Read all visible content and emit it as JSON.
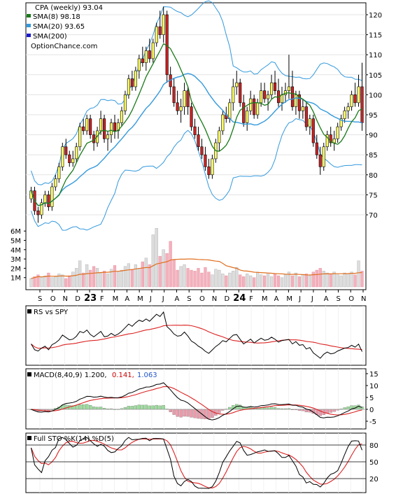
{
  "chart_data": {
    "type": "stock-chart",
    "title": "CPA (weekly) 93.04",
    "legend": [
      {
        "label": "SMA(8) 98.18",
        "color": "#1a7a1a"
      },
      {
        "label": "SMA(20) 93.65",
        "color": "#3399dd"
      },
      {
        "label": "SMA(200)",
        "color": "#1a1acc"
      }
    ],
    "source": "OptionChance.com",
    "price_ticks": [
      "120",
      "115",
      "110",
      "105",
      "100",
      "95",
      "90",
      "85",
      "80",
      "75",
      "70"
    ],
    "volume_ticks": [
      "6M",
      "5M",
      "4M",
      "3M",
      "2M",
      "1M"
    ],
    "month_ticks": [
      "S",
      "O",
      "N",
      "D",
      "23",
      "F",
      "M",
      "A",
      "M",
      "J",
      "J",
      "A",
      "S",
      "O",
      "N",
      "D",
      "24",
      "F",
      "M",
      "A",
      "M",
      "J",
      "J",
      "A",
      "S",
      "O",
      "N"
    ],
    "bollinger_upper_color": "#e8e000",
    "colors": {
      "up": "#ffff66",
      "down": "#cc2222",
      "volume_up": "#dddddd",
      "volume_down": "#f4b0bc",
      "macd_pos": "#99dd99",
      "macd_neg": "#ee99aa"
    },
    "price_series": [
      [
        74,
        77,
        73,
        76
      ],
      [
        76,
        77,
        70,
        71
      ],
      [
        71,
        72,
        68,
        70
      ],
      [
        70,
        74,
        69,
        73
      ],
      [
        73,
        76,
        72,
        75
      ],
      [
        75,
        76,
        71,
        72
      ],
      [
        72,
        78,
        71,
        77
      ],
      [
        77,
        80,
        76,
        79
      ],
      [
        79,
        83,
        78,
        82
      ],
      [
        82,
        88,
        81,
        87
      ],
      [
        87,
        89,
        84,
        85
      ],
      [
        85,
        86,
        82,
        83
      ],
      [
        83,
        86,
        82,
        84
      ],
      [
        84,
        88,
        83,
        87
      ],
      [
        87,
        93,
        86,
        92
      ],
      [
        92,
        94,
        90,
        91
      ],
      [
        91,
        95,
        90,
        94
      ],
      [
        94,
        95,
        89,
        90
      ],
      [
        90,
        91,
        86,
        88
      ],
      [
        88,
        92,
        87,
        91
      ],
      [
        91,
        96,
        90,
        94
      ],
      [
        94,
        95,
        88,
        89
      ],
      [
        89,
        91,
        86,
        90
      ],
      [
        90,
        94,
        88,
        93
      ],
      [
        93,
        95,
        89,
        91
      ],
      [
        91,
        94,
        89,
        93
      ],
      [
        93,
        97,
        92,
        96
      ],
      [
        96,
        101,
        95,
        100
      ],
      [
        100,
        105,
        99,
        104
      ],
      [
        104,
        106,
        101,
        102
      ],
      [
        102,
        107,
        101,
        106
      ],
      [
        106,
        110,
        104,
        109
      ],
      [
        109,
        112,
        107,
        108
      ],
      [
        108,
        112,
        106,
        111
      ],
      [
        111,
        114,
        108,
        109
      ],
      [
        109,
        114,
        108,
        113
      ],
      [
        113,
        118,
        112,
        117
      ],
      [
        117,
        121,
        114,
        115
      ],
      [
        115,
        122,
        113,
        120
      ],
      [
        120,
        121,
        103,
        105
      ],
      [
        105,
        107,
        100,
        102
      ],
      [
        102,
        104,
        97,
        98
      ],
      [
        98,
        101,
        95,
        96
      ],
      [
        96,
        99,
        93,
        97
      ],
      [
        97,
        103,
        95,
        101
      ],
      [
        101,
        102,
        95,
        97
      ],
      [
        97,
        98,
        91,
        92
      ],
      [
        92,
        94,
        89,
        90
      ],
      [
        90,
        92,
        86,
        87
      ],
      [
        87,
        89,
        84,
        85
      ],
      [
        85,
        87,
        81,
        82
      ],
      [
        82,
        84,
        79,
        80
      ],
      [
        80,
        85,
        79,
        84
      ],
      [
        84,
        89,
        83,
        88
      ],
      [
        88,
        92,
        86,
        91
      ],
      [
        91,
        96,
        90,
        95
      ],
      [
        95,
        97,
        93,
        94
      ],
      [
        94,
        99,
        93,
        98
      ],
      [
        98,
        104,
        96,
        102
      ],
      [
        102,
        106,
        100,
        103
      ],
      [
        103,
        104,
        97,
        98
      ],
      [
        98,
        100,
        92,
        93
      ],
      [
        93,
        97,
        91,
        96
      ],
      [
        96,
        101,
        95,
        99
      ],
      [
        99,
        100,
        94,
        95
      ],
      [
        95,
        99,
        94,
        98
      ],
      [
        98,
        103,
        97,
        101
      ],
      [
        101,
        103,
        98,
        99
      ],
      [
        99,
        101,
        96,
        100
      ],
      [
        100,
        105,
        99,
        103
      ],
      [
        103,
        106,
        100,
        101
      ],
      [
        101,
        104,
        97,
        98
      ],
      [
        98,
        102,
        96,
        100
      ],
      [
        100,
        103,
        98,
        101
      ],
      [
        101,
        110,
        99,
        102
      ],
      [
        102,
        106,
        96,
        97
      ],
      [
        97,
        101,
        95,
        100
      ],
      [
        100,
        101,
        94,
        96
      ],
      [
        96,
        99,
        94,
        97
      ],
      [
        97,
        98,
        91,
        92
      ],
      [
        92,
        95,
        90,
        94
      ],
      [
        94,
        95,
        87,
        88
      ],
      [
        88,
        90,
        84,
        85
      ],
      [
        85,
        87,
        80,
        82
      ],
      [
        82,
        88,
        81,
        87
      ],
      [
        87,
        91,
        86,
        90
      ],
      [
        90,
        92,
        87,
        88
      ],
      [
        88,
        91,
        86,
        89
      ],
      [
        89,
        93,
        88,
        92
      ],
      [
        92,
        95,
        91,
        94
      ],
      [
        94,
        97,
        93,
        96
      ],
      [
        96,
        98,
        94,
        97
      ],
      [
        97,
        101,
        96,
        100
      ],
      [
        100,
        103,
        97,
        98
      ],
      [
        98,
        105,
        97,
        102
      ],
      [
        102,
        108,
        91,
        93
      ]
    ],
    "volume_series": [
      0.9,
      1.1,
      1.3,
      1.0,
      1.2,
      1.5,
      1.0,
      1.1,
      1.4,
      1.3,
      0.9,
      1.2,
      1.6,
      2.0,
      2.8,
      1.5,
      2.4,
      1.8,
      2.2,
      2.0,
      1.5,
      1.7,
      1.4,
      1.9,
      2.3,
      1.6,
      1.8,
      2.2,
      2.5,
      1.9,
      2.4,
      2.0,
      2.7,
      3.1,
      2.4,
      5.6,
      6.3,
      3.3,
      4.0,
      3.6,
      4.9,
      2.9,
      1.8,
      2.2,
      2.4,
      2.0,
      1.8,
      1.7,
      2.0,
      1.5,
      2.1,
      1.6,
      1.3,
      1.9,
      1.8,
      1.4,
      1.2,
      1.5,
      1.7,
      2.1,
      1.3,
      1.1,
      1.4,
      1.2,
      1.0,
      1.6,
      1.3,
      1.2,
      1.5,
      1.1,
      1.4,
      1.2,
      1.0,
      1.3,
      1.6,
      1.2,
      1.5,
      1.1,
      1.3,
      1.4,
      1.2,
      1.6,
      1.8,
      2.0,
      1.7,
      1.5,
      1.4,
      1.6,
      1.3,
      1.2,
      1.5,
      1.4,
      1.6,
      1.3,
      2.8,
      1.7
    ],
    "rs_label": "RS vs SPY",
    "macd_label": "MACD(8,40,9) 1.200,",
    "macd_value_2": "0.141,",
    "macd_value_3": "1.063",
    "macd_ticks": [
      "15",
      "10",
      "5",
      "0",
      "-5"
    ],
    "sto_label": "Full STO %K(14) %D(5)",
    "sto_ticks": [
      "80",
      "50",
      "20"
    ]
  }
}
